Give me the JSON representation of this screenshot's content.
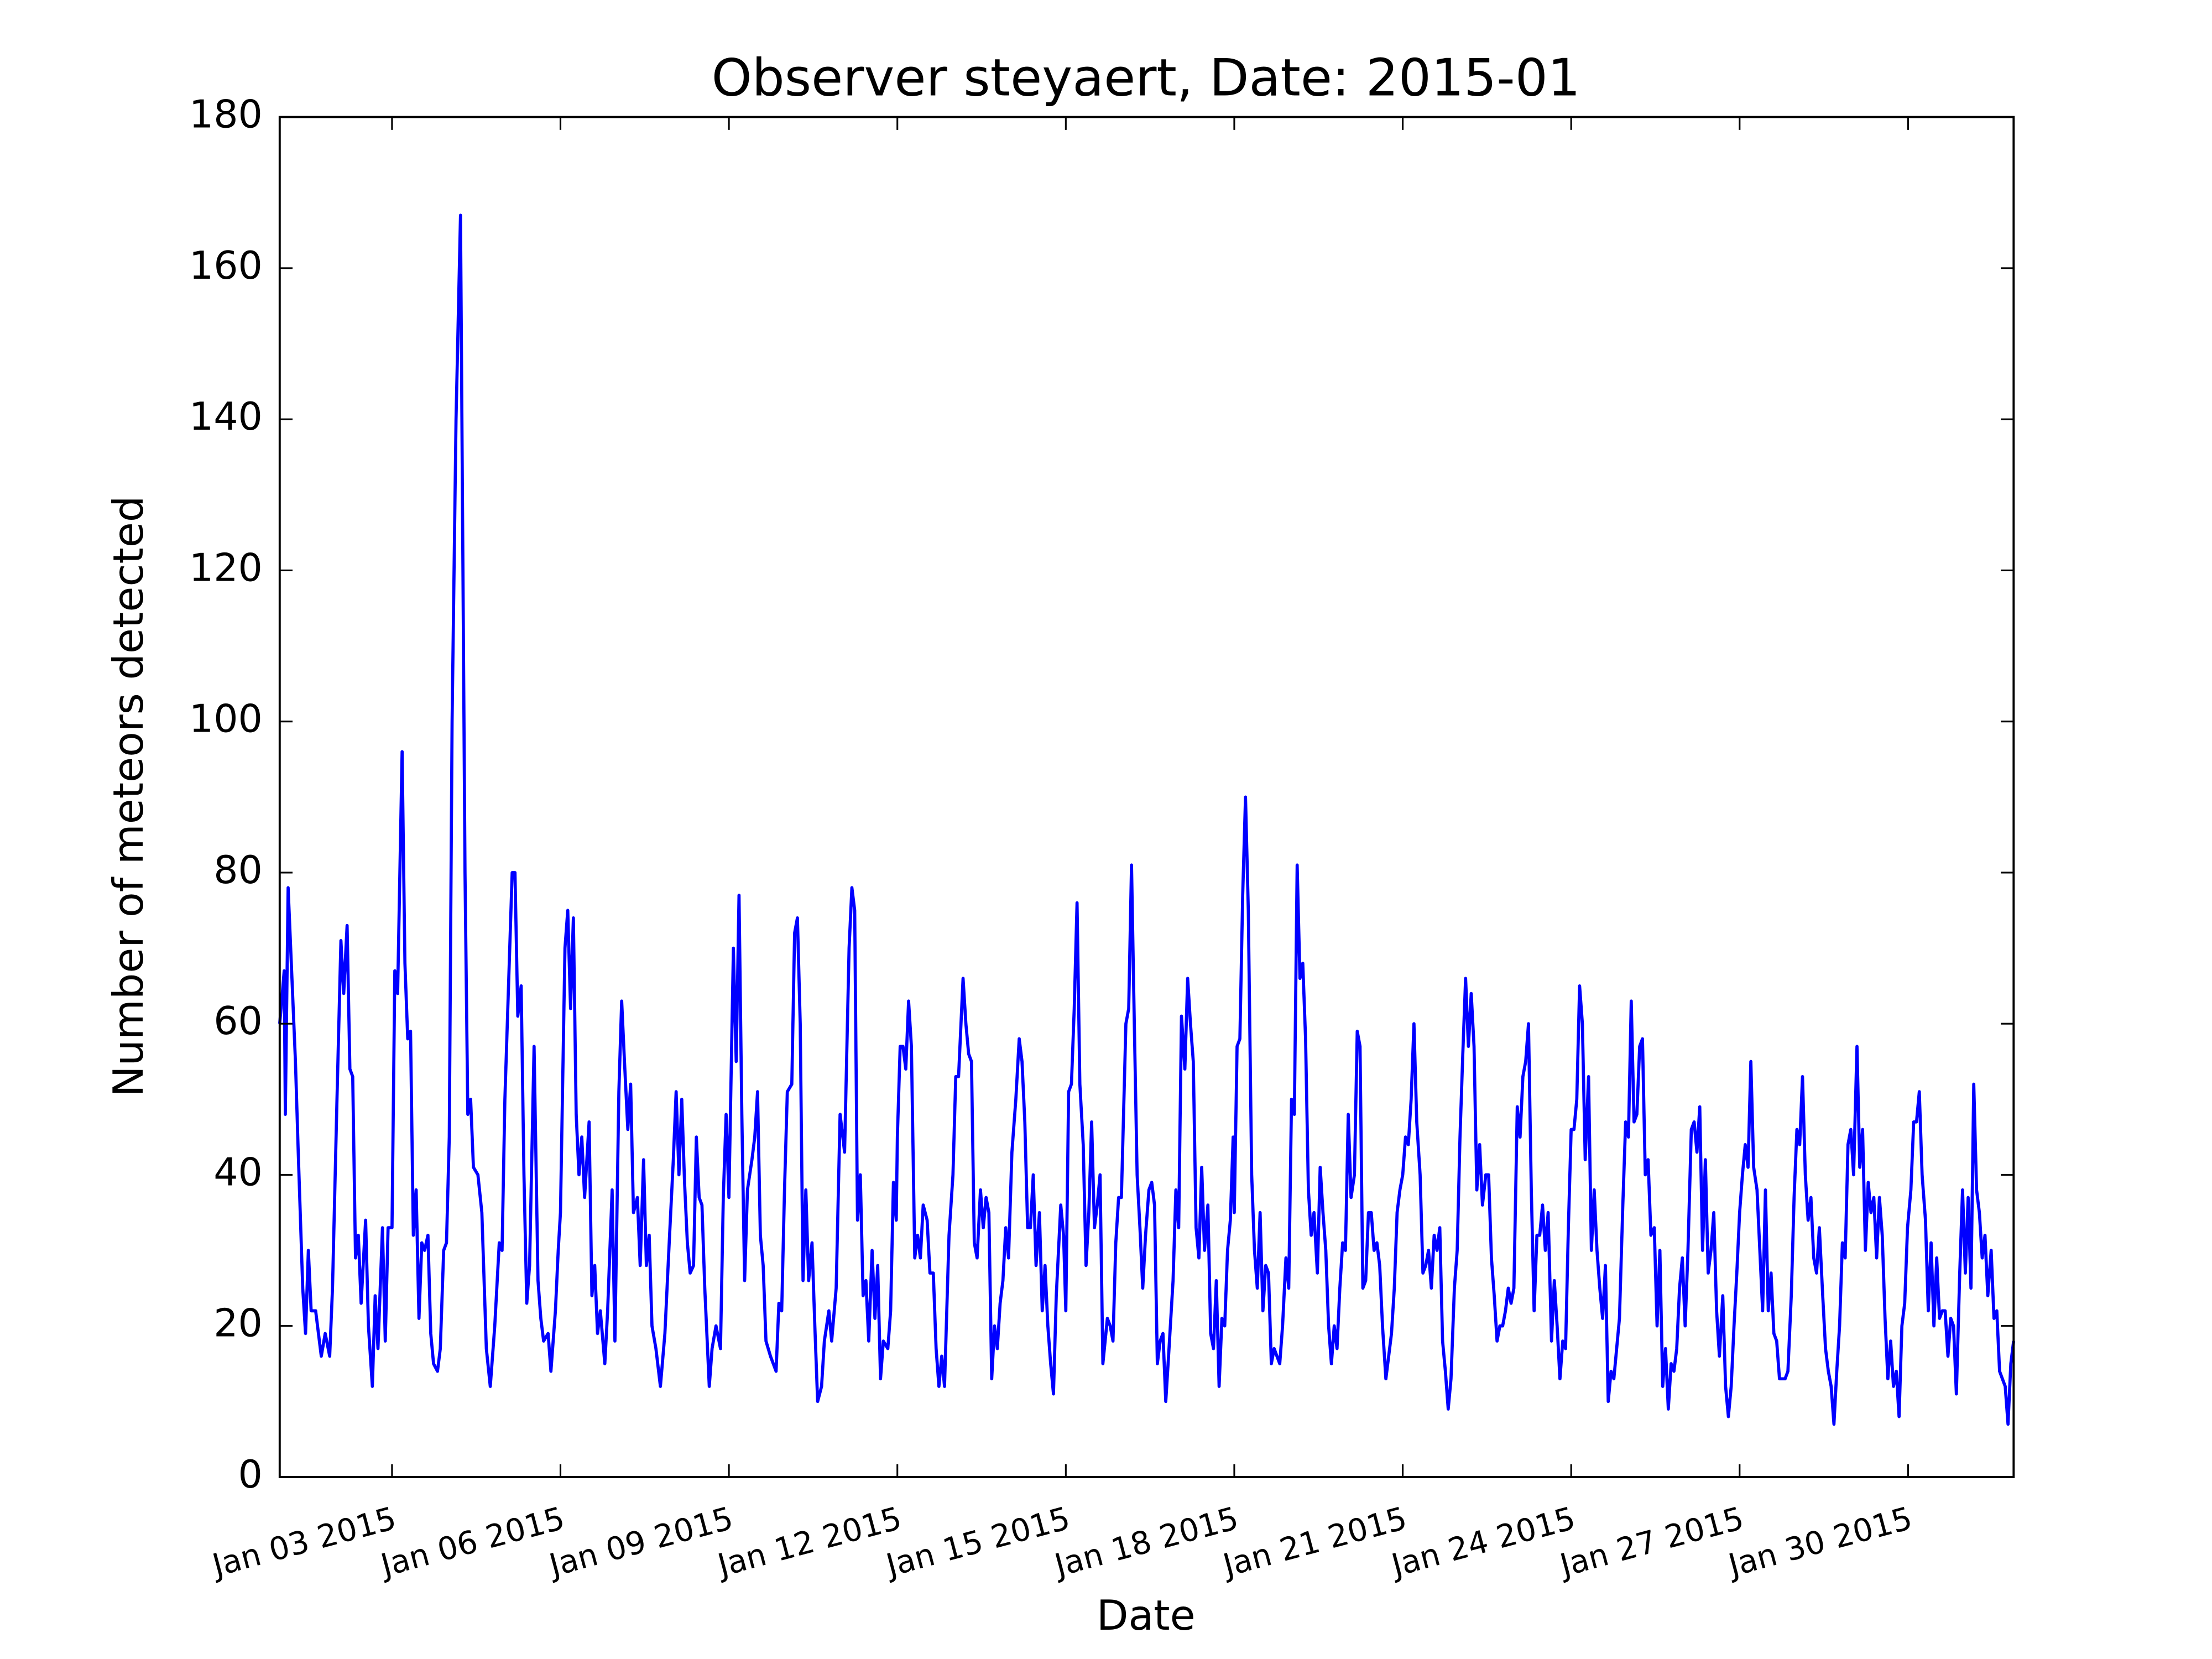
{
  "chart_data": {
    "type": "line",
    "title": "Observer steyaert, Date: 2015-01",
    "x_label": "Date",
    "y_label": "Number of meteors detected",
    "color": "#0000ff",
    "grid": false,
    "xlim": [
      1,
      31.88
    ],
    "ylim": [
      0,
      180
    ],
    "yticks": [
      0,
      20,
      40,
      60,
      80,
      100,
      120,
      140,
      160,
      180
    ],
    "xticks": [
      {
        "value": 3,
        "label": "Jan 03 2015"
      },
      {
        "value": 6,
        "label": "Jan 06 2015"
      },
      {
        "value": 9,
        "label": "Jan 09 2015"
      },
      {
        "value": 12,
        "label": "Jan 12 2015"
      },
      {
        "value": 15,
        "label": "Jan 15 2015"
      },
      {
        "value": 18,
        "label": "Jan 18 2015"
      },
      {
        "value": 21,
        "label": "Jan 21 2015"
      },
      {
        "value": 24,
        "label": "Jan 24 2015"
      },
      {
        "value": 27,
        "label": "Jan 27 2015"
      },
      {
        "value": 30,
        "label": "Jan 30 2015"
      }
    ],
    "x": [
      1.0,
      1.08,
      1.1,
      1.15,
      1.28,
      1.33,
      1.41,
      1.46,
      1.51,
      1.56,
      1.64,
      1.74,
      1.81,
      1.89,
      1.94,
      2.02,
      2.09,
      2.14,
      2.2,
      2.25,
      2.3,
      2.35,
      2.4,
      2.45,
      2.53,
      2.58,
      2.65,
      2.7,
      2.75,
      2.83,
      2.88,
      2.93,
      3.0,
      3.05,
      3.1,
      3.18,
      3.23,
      3.28,
      3.33,
      3.38,
      3.43,
      3.48,
      3.53,
      3.58,
      3.64,
      3.69,
      3.74,
      3.81,
      3.86,
      3.92,
      3.97,
      4.02,
      4.07,
      4.14,
      4.22,
      4.3,
      4.35,
      4.4,
      4.45,
      4.53,
      4.6,
      4.68,
      4.75,
      4.83,
      4.91,
      4.96,
      5.01,
      5.14,
      5.19,
      5.24,
      5.3,
      5.35,
      5.4,
      5.45,
      5.53,
      5.6,
      5.65,
      5.7,
      5.78,
      5.83,
      5.91,
      5.96,
      6.0,
      6.08,
      6.13,
      6.18,
      6.23,
      6.28,
      6.33,
      6.38,
      6.43,
      6.51,
      6.56,
      6.61,
      6.66,
      6.71,
      6.79,
      6.84,
      6.92,
      6.97,
      7.04,
      7.09,
      7.14,
      7.2,
      7.25,
      7.3,
      7.37,
      7.42,
      7.48,
      7.53,
      7.58,
      7.63,
      7.7,
      7.78,
      7.86,
      7.93,
      8.01,
      8.06,
      8.11,
      8.16,
      8.21,
      8.26,
      8.31,
      8.37,
      8.42,
      8.47,
      8.52,
      8.57,
      8.65,
      8.7,
      8.77,
      8.85,
      8.9,
      8.95,
      9.0,
      9.08,
      9.13,
      9.18,
      9.23,
      9.28,
      9.33,
      9.41,
      9.46,
      9.51,
      9.56,
      9.61,
      9.66,
      9.74,
      9.79,
      9.84,
      9.89,
      9.94,
      9.99,
      10.04,
      10.12,
      10.17,
      10.22,
      10.27,
      10.32,
      10.37,
      10.42,
      10.48,
      10.53,
      10.58,
      10.65,
      10.7,
      10.78,
      10.83,
      10.91,
      10.98,
      11.06,
      11.14,
      11.19,
      11.24,
      11.29,
      11.34,
      11.39,
      11.44,
      11.49,
      11.55,
      11.6,
      11.65,
      11.7,
      11.75,
      11.83,
      11.88,
      11.93,
      11.98,
      12.0,
      12.05,
      12.1,
      12.15,
      12.2,
      12.25,
      12.31,
      12.36,
      12.41,
      12.46,
      12.53,
      12.58,
      12.64,
      12.69,
      12.74,
      12.79,
      12.84,
      12.92,
      12.99,
      13.04,
      13.09,
      13.17,
      13.22,
      13.27,
      13.32,
      13.37,
      13.42,
      13.48,
      13.53,
      13.58,
      13.63,
      13.68,
      13.73,
      13.78,
      13.83,
      13.88,
      13.93,
      13.98,
      14.04,
      14.11,
      14.17,
      14.22,
      14.27,
      14.32,
      14.37,
      14.42,
      14.47,
      14.53,
      14.58,
      14.63,
      14.68,
      14.73,
      14.78,
      14.83,
      14.91,
      14.96,
      15.0,
      15.05,
      15.1,
      15.15,
      15.2,
      15.25,
      15.31,
      15.36,
      15.41,
      15.46,
      15.51,
      15.56,
      15.61,
      15.66,
      15.74,
      15.79,
      15.84,
      15.89,
      15.94,
      15.99,
      16.07,
      16.12,
      16.17,
      16.22,
      16.27,
      16.32,
      16.37,
      16.42,
      16.48,
      16.53,
      16.58,
      16.63,
      16.68,
      16.73,
      16.78,
      16.83,
      16.91,
      16.96,
      17.01,
      17.06,
      17.12,
      17.17,
      17.22,
      17.27,
      17.32,
      17.37,
      17.42,
      17.47,
      17.53,
      17.58,
      17.63,
      17.68,
      17.73,
      17.78,
      17.83,
      17.88,
      17.93,
      17.98,
      18.0,
      18.05,
      18.1,
      18.15,
      18.2,
      18.25,
      18.31,
      18.36,
      18.41,
      18.46,
      18.51,
      18.56,
      18.61,
      18.66,
      18.71,
      18.76,
      18.81,
      18.86,
      18.92,
      18.97,
      19.02,
      19.07,
      19.12,
      19.17,
      19.22,
      19.27,
      19.32,
      19.37,
      19.42,
      19.48,
      19.53,
      19.58,
      19.63,
      19.68,
      19.73,
      19.78,
      19.83,
      19.88,
      19.93,
      19.98,
      20.03,
      20.08,
      20.14,
      20.19,
      20.24,
      20.29,
      20.34,
      20.39,
      20.44,
      20.49,
      20.54,
      20.59,
      20.64,
      20.7,
      20.75,
      20.8,
      20.85,
      20.9,
      20.95,
      21.0,
      21.05,
      21.1,
      21.15,
      21.2,
      21.25,
      21.31,
      21.36,
      21.41,
      21.46,
      21.51,
      21.56,
      21.61,
      21.66,
      21.71,
      21.76,
      21.81,
      21.86,
      21.92,
      21.97,
      22.02,
      22.07,
      22.12,
      22.17,
      22.22,
      22.27,
      22.32,
      22.37,
      22.42,
      22.48,
      22.53,
      22.58,
      22.63,
      22.68,
      22.73,
      22.78,
      22.83,
      22.88,
      22.93,
      22.98,
      23.04,
      23.09,
      23.14,
      23.19,
      23.24,
      23.29,
      23.34,
      23.39,
      23.44,
      23.49,
      23.54,
      23.59,
      23.65,
      23.7,
      23.75,
      23.8,
      23.85,
      23.9,
      23.95,
      24.0,
      24.05,
      24.1,
      24.15,
      24.2,
      24.25,
      24.31,
      24.36,
      24.41,
      24.46,
      24.51,
      24.56,
      24.61,
      24.66,
      24.71,
      24.76,
      24.81,
      24.86,
      24.92,
      24.97,
      25.02,
      25.07,
      25.12,
      25.17,
      25.22,
      25.27,
      25.32,
      25.37,
      25.42,
      25.48,
      25.53,
      25.58,
      25.63,
      25.68,
      25.73,
      25.78,
      25.83,
      25.88,
      25.93,
      25.98,
      26.03,
      26.08,
      26.14,
      26.19,
      26.24,
      26.29,
      26.34,
      26.39,
      26.44,
      26.49,
      26.54,
      26.59,
      26.64,
      26.7,
      26.75,
      26.8,
      26.85,
      26.9,
      26.95,
      27.0,
      27.05,
      27.1,
      27.15,
      27.2,
      27.25,
      27.31,
      27.36,
      27.41,
      27.46,
      27.51,
      27.56,
      27.61,
      27.66,
      27.71,
      27.76,
      27.81,
      27.86,
      27.92,
      27.97,
      28.02,
      28.07,
      28.12,
      28.17,
      28.22,
      28.27,
      28.32,
      28.37,
      28.42,
      28.48,
      28.53,
      28.58,
      28.63,
      28.68,
      28.73,
      28.78,
      28.83,
      28.88,
      28.93,
      28.98,
      29.03,
      29.09,
      29.14,
      29.19,
      29.24,
      29.29,
      29.34,
      29.39,
      29.44,
      29.49,
      29.54,
      29.59,
      29.64,
      29.69,
      29.74,
      29.79,
      29.84,
      29.89,
      29.94,
      29.99,
      30.05,
      30.1,
      30.15,
      30.2,
      30.25,
      30.31,
      30.36,
      30.41,
      30.46,
      30.51,
      30.56,
      30.61,
      30.66,
      30.71,
      30.76,
      30.81,
      30.86,
      30.92,
      30.97,
      31.02,
      31.07,
      31.12,
      31.17,
      31.22,
      31.27,
      31.32,
      31.37,
      31.42,
      31.48,
      31.53,
      31.58,
      31.63,
      31.68,
      31.73,
      31.78,
      31.83,
      31.88
    ],
    "values": [
      60,
      67,
      48,
      78,
      55,
      43,
      25,
      19,
      30,
      22,
      22,
      16,
      19,
      16,
      25,
      50,
      71,
      64,
      73,
      54,
      53,
      29,
      32,
      23,
      34,
      20,
      12,
      24,
      17,
      33,
      18,
      33,
      33,
      67,
      64,
      96,
      68,
      58,
      59,
      32,
      38,
      21,
      31,
      30,
      32,
      19,
      15,
      14,
      17,
      30,
      31,
      45,
      100,
      140,
      167,
      80,
      48,
      50,
      41,
      40,
      35,
      17,
      12,
      20,
      31,
      30,
      50,
      80,
      80,
      61,
      65,
      40,
      23,
      28,
      57,
      26,
      21,
      18,
      19,
      14,
      22,
      30,
      35,
      70,
      75,
      62,
      74,
      48,
      40,
      45,
      37,
      47,
      24,
      28,
      19,
      22,
      15,
      22,
      38,
      18,
      51,
      63,
      55,
      46,
      52,
      35,
      37,
      28,
      42,
      28,
      32,
      20,
      17,
      12,
      19,
      30,
      42,
      51,
      40,
      50,
      39,
      31,
      27,
      28,
      45,
      37,
      36,
      25,
      12,
      17,
      20,
      17,
      37,
      48,
      37,
      70,
      55,
      77,
      48,
      26,
      38,
      42,
      45,
      51,
      32,
      28,
      18,
      16,
      15,
      14,
      23,
      22,
      38,
      51,
      52,
      72,
      74,
      60,
      26,
      38,
      26,
      31,
      20,
      10,
      12,
      18,
      22,
      18,
      25,
      48,
      43,
      70,
      78,
      75,
      34,
      40,
      24,
      26,
      18,
      30,
      21,
      28,
      13,
      18,
      17,
      22,
      39,
      34,
      45,
      57,
      57,
      54,
      63,
      57,
      29,
      32,
      29,
      36,
      34,
      27,
      27,
      17,
      12,
      16,
      12,
      32,
      40,
      53,
      53,
      66,
      60,
      56,
      55,
      31,
      29,
      38,
      33,
      37,
      35,
      13,
      20,
      17,
      23,
      26,
      33,
      29,
      43,
      50,
      58,
      55,
      47,
      33,
      33,
      40,
      28,
      35,
      22,
      28,
      20,
      15,
      11,
      24,
      36,
      32,
      22,
      51,
      52,
      62,
      76,
      52,
      44,
      28,
      35,
      47,
      33,
      36,
      40,
      15,
      21,
      20,
      18,
      31,
      37,
      37,
      60,
      62,
      81,
      60,
      40,
      33,
      25,
      32,
      38,
      39,
      36,
      15,
      18,
      19,
      10,
      16,
      26,
      38,
      33,
      61,
      54,
      66,
      60,
      55,
      33,
      29,
      41,
      30,
      36,
      19,
      17,
      26,
      12,
      21,
      20,
      30,
      34,
      45,
      35,
      57,
      58,
      77,
      90,
      75,
      40,
      30,
      25,
      35,
      22,
      28,
      27,
      15,
      17,
      16,
      15,
      20,
      29,
      25,
      50,
      48,
      81,
      66,
      68,
      58,
      38,
      32,
      35,
      27,
      41,
      35,
      30,
      20,
      15,
      20,
      17,
      25,
      31,
      30,
      48,
      37,
      40,
      59,
      57,
      25,
      26,
      35,
      35,
      30,
      31,
      28,
      20,
      13,
      16,
      19,
      25,
      35,
      38,
      40,
      45,
      44,
      50,
      60,
      47,
      40,
      27,
      28,
      30,
      25,
      32,
      30,
      33,
      18,
      14,
      9,
      13,
      25,
      30,
      45,
      56,
      66,
      57,
      64,
      57,
      38,
      44,
      36,
      40,
      40,
      29,
      24,
      18,
      20,
      20,
      22,
      25,
      23,
      25,
      49,
      45,
      53,
      55,
      60,
      38,
      22,
      32,
      32,
      36,
      30,
      35,
      18,
      26,
      20,
      13,
      18,
      17,
      33,
      46,
      46,
      50,
      65,
      60,
      42,
      53,
      30,
      38,
      30,
      25,
      21,
      28,
      10,
      14,
      13,
      17,
      21,
      36,
      47,
      45,
      63,
      47,
      48,
      57,
      58,
      40,
      42,
      32,
      33,
      20,
      30,
      12,
      17,
      9,
      15,
      14,
      17,
      25,
      29,
      20,
      30,
      46,
      47,
      43,
      49,
      30,
      42,
      27,
      30,
      35,
      22,
      16,
      24,
      12,
      8,
      12,
      20,
      27,
      35,
      40,
      44,
      41,
      55,
      41,
      38,
      30,
      22,
      38,
      22,
      27,
      19,
      18,
      13,
      13,
      13,
      14,
      24,
      37,
      46,
      44,
      53,
      40,
      34,
      37,
      29,
      27,
      33,
      24,
      17,
      14,
      12,
      7,
      14,
      20,
      31,
      29,
      44,
      46,
      40,
      57,
      41,
      46,
      30,
      39,
      35,
      37,
      29,
      37,
      32,
      21,
      13,
      18,
      12,
      14,
      8,
      20,
      23,
      33,
      38,
      47,
      47,
      51,
      40,
      34,
      22,
      31,
      20,
      29,
      21,
      22,
      22,
      16,
      21,
      20,
      11,
      27,
      38,
      27,
      37,
      25,
      52,
      38,
      35,
      29,
      32,
      24,
      30,
      21,
      22,
      14,
      13,
      12,
      7,
      15,
      18
    ]
  }
}
